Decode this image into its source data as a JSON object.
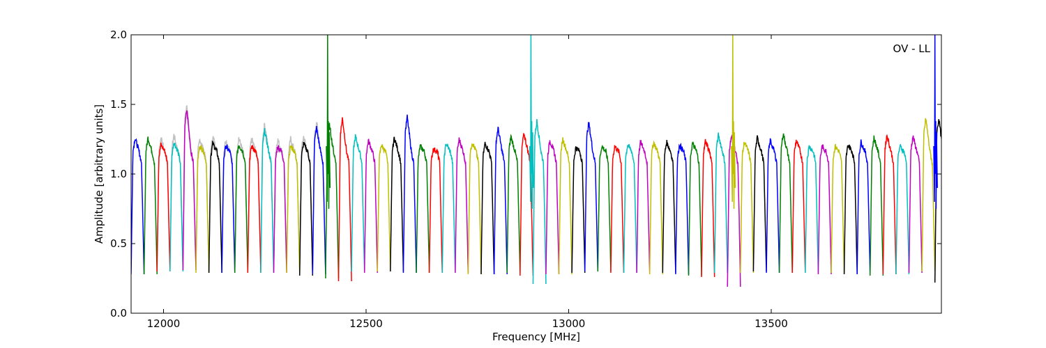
{
  "chart_data": {
    "type": "line",
    "title": "",
    "xlabel": "Frequency [MHz]",
    "ylabel": "Amplitude [arbitrary units]",
    "xlim": [
      11920,
      13920
    ],
    "ylim": [
      0.0,
      2.0
    ],
    "x_ticks": [
      12000,
      12500,
      13000,
      13500
    ],
    "y_ticks": [
      0.0,
      0.5,
      1.0,
      1.5,
      2.0
    ],
    "x_tick_labels": [
      "12000",
      "12500",
      "13000",
      "13500"
    ],
    "y_tick_labels": [
      "0.0",
      "0.5",
      "1.0",
      "1.5",
      "2.0"
    ],
    "annotation": "OV - LL",
    "grid": false,
    "legend": "none",
    "band_width_mhz": 32,
    "band_starts_mhz": [
      11920,
      11952,
      11984,
      12016,
      12048,
      12080,
      12112,
      12144,
      12176,
      12208,
      12240,
      12272,
      12304,
      12336,
      12368,
      12400,
      12432,
      12464,
      12496,
      12528,
      12560,
      12592,
      12624,
      12656,
      12688,
      12720,
      12752,
      12784,
      12816,
      12848,
      12880,
      12912,
      12944,
      12976,
      13008,
      13040,
      13072,
      13104,
      13136,
      13168,
      13200,
      13232,
      13264,
      13296,
      13328,
      13360,
      13392,
      13424,
      13456,
      13488,
      13520,
      13552,
      13584,
      13616,
      13648,
      13680,
      13712,
      13744,
      13776,
      13808,
      13840,
      13872,
      13904
    ],
    "band_colors": [
      "#0000ff",
      "#008000",
      "#ff0000",
      "#00bfbf",
      "#bf00bf",
      "#bfbf00",
      "#000000"
    ],
    "band_peak_levels": [
      1.26,
      1.26,
      1.21,
      1.23,
      1.46,
      1.2,
      1.22,
      1.2,
      1.21,
      1.2,
      1.31,
      1.2,
      1.2,
      1.22,
      1.33,
      1.35,
      1.4,
      1.27,
      1.24,
      1.21,
      1.26,
      1.41,
      1.2,
      1.18,
      1.22,
      1.25,
      1.23,
      1.22,
      1.33,
      1.27,
      1.29,
      1.38,
      1.24,
      1.25,
      1.19,
      1.37,
      1.2,
      1.2,
      1.21,
      1.23,
      1.23,
      1.23,
      1.21,
      1.22,
      1.24,
      1.28,
      1.27,
      1.23,
      1.26,
      1.24,
      1.29,
      1.24,
      1.2,
      1.2,
      1.2,
      1.21,
      1.23,
      1.26,
      1.28,
      1.2,
      1.27,
      1.4,
      1.4
    ],
    "band_min_levels": [
      0.28,
      0.28,
      0.3,
      0.3,
      0.31,
      0.29,
      0.29,
      0.29,
      0.29,
      0.29,
      0.29,
      0.29,
      0.29,
      0.27,
      0.28,
      0.25,
      0.23,
      0.3,
      0.29,
      0.3,
      0.3,
      0.29,
      0.29,
      0.29,
      0.29,
      0.29,
      0.28,
      0.28,
      0.28,
      0.29,
      0.27,
      0.21,
      0.28,
      0.28,
      0.29,
      0.3,
      0.3,
      0.29,
      0.29,
      0.29,
      0.28,
      0.29,
      0.28,
      0.27,
      0.26,
      0.29,
      0.19,
      0.29,
      0.3,
      0.29,
      0.29,
      0.29,
      0.29,
      0.28,
      0.29,
      0.28,
      0.28,
      0.27,
      0.28,
      0.28,
      0.29,
      0.3,
      0.22
    ],
    "reference_color": "#c0c0c0",
    "spikes": [
      {
        "x": 12406,
        "y": 2.0,
        "color": "#008000"
      },
      {
        "x": 12908,
        "y": 2.0,
        "color": "#00bfbf"
      },
      {
        "x": 13406,
        "y": 2.0,
        "color": "#bfbf00"
      },
      {
        "x": 13905,
        "y": 2.0,
        "color": "#0000ff"
      }
    ]
  }
}
